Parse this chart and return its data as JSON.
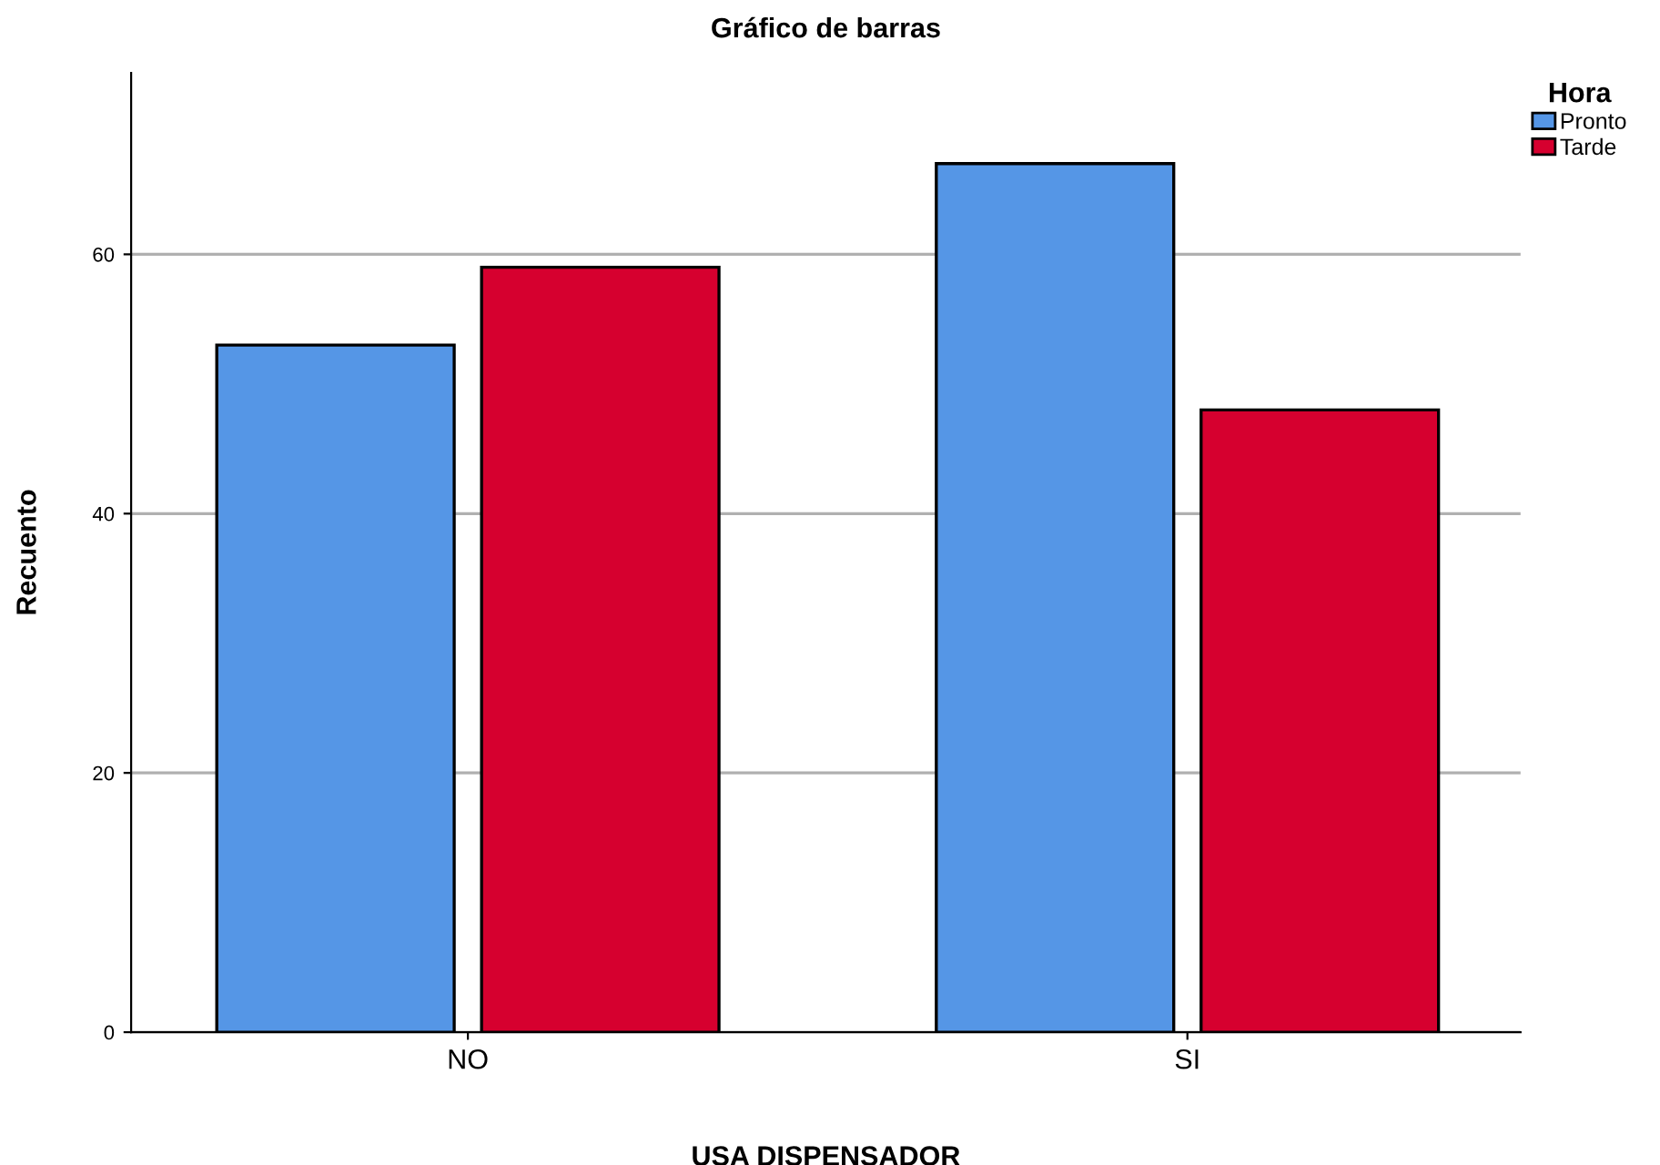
{
  "chart_data": {
    "type": "bar",
    "title": "Gráfico de barras",
    "xlabel": "USA DISPENSADOR",
    "ylabel": "Recuento",
    "legend_title": "Hora",
    "categories": [
      "NO",
      "SI"
    ],
    "series": [
      {
        "name": "Pronto",
        "color": "#5596e6",
        "values": [
          53,
          67
        ]
      },
      {
        "name": "Tarde",
        "color": "#d6002f",
        "values": [
          59,
          48
        ]
      }
    ],
    "ylim": [
      0,
      74
    ],
    "yticks": [
      0,
      20,
      40,
      60
    ],
    "grid": "y",
    "legend": "top right"
  }
}
